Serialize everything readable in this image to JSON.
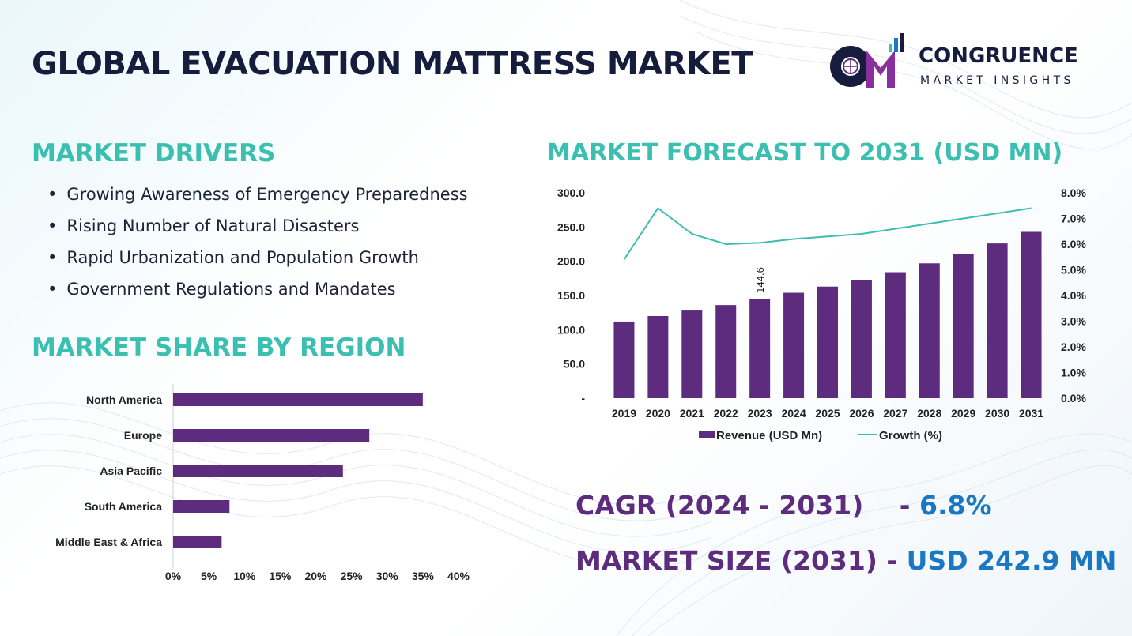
{
  "header": {
    "title": "GLOBAL EVACUATION MATTRESS MARKET",
    "logo_line1": "CONGRUENCE",
    "logo_line2": "MARKET INSIGHTS"
  },
  "drivers": {
    "title": "MARKET DRIVERS",
    "items": [
      "Growing Awareness of Emergency Preparedness",
      "Rising Number of Natural Disasters",
      "Rapid Urbanization and Population Growth",
      "Government Regulations and Mandates"
    ]
  },
  "share": {
    "title": "MARKET SHARE BY REGION"
  },
  "forecast": {
    "title": "MARKET FORECAST TO 2031 (USD MN)"
  },
  "metrics": {
    "cagr_label": "CAGR (2024 - 2031)",
    "cagr_sep": "-",
    "cagr_value": "6.8%",
    "size_label": "MARKET SIZE (2031)",
    "size_sep": "-",
    "size_value": "USD 242.9 MN"
  },
  "colors": {
    "title": "#151c3c",
    "section": "#3bbfb1",
    "bar": "#5e2c7e",
    "line": "#3bbfb1",
    "value": "#1a78c2"
  },
  "chart_data": [
    {
      "type": "bar",
      "orientation": "horizontal",
      "categories": [
        "North America",
        "Europe",
        "Asia Pacific",
        "South America",
        "Middle East & Africa"
      ],
      "values": [
        35,
        27.5,
        23.8,
        7.9,
        6.8
      ],
      "xlim": [
        0,
        40
      ],
      "xticks": [
        "0%",
        "5%",
        "10%",
        "15%",
        "20%",
        "25%",
        "30%",
        "35%",
        "40%"
      ],
      "grid": false
    },
    {
      "type": "bar",
      "categories": [
        "2019",
        "2020",
        "2021",
        "2022",
        "2023",
        "2024",
        "2025",
        "2026",
        "2027",
        "2028",
        "2029",
        "2030",
        "2031"
      ],
      "series": [
        {
          "name": "Revenue (USD Mn)",
          "type": "bar",
          "axis": "left",
          "values": [
            112,
            120,
            128,
            136,
            144.6,
            154,
            163,
            173,
            184,
            197,
            211,
            226,
            242.9
          ]
        },
        {
          "name": "Growth (%)",
          "type": "line",
          "axis": "right",
          "values": [
            5.4,
            7.4,
            6.4,
            6.0,
            6.05,
            6.2,
            6.3,
            6.4,
            6.6,
            6.8,
            7.0,
            7.2,
            7.4
          ]
        }
      ],
      "data_labels": [
        {
          "category": "2023",
          "text": "144.6"
        }
      ],
      "ylim": [
        0,
        300
      ],
      "yticks": [
        "-",
        "50.0",
        "100.0",
        "150.0",
        "200.0",
        "250.0",
        "300.0"
      ],
      "y2lim": [
        0,
        8
      ],
      "y2ticks": [
        "0.0%",
        "1.0%",
        "2.0%",
        "3.0%",
        "4.0%",
        "5.0%",
        "6.0%",
        "7.0%",
        "8.0%"
      ],
      "legend": "bottom",
      "grid": false
    }
  ]
}
